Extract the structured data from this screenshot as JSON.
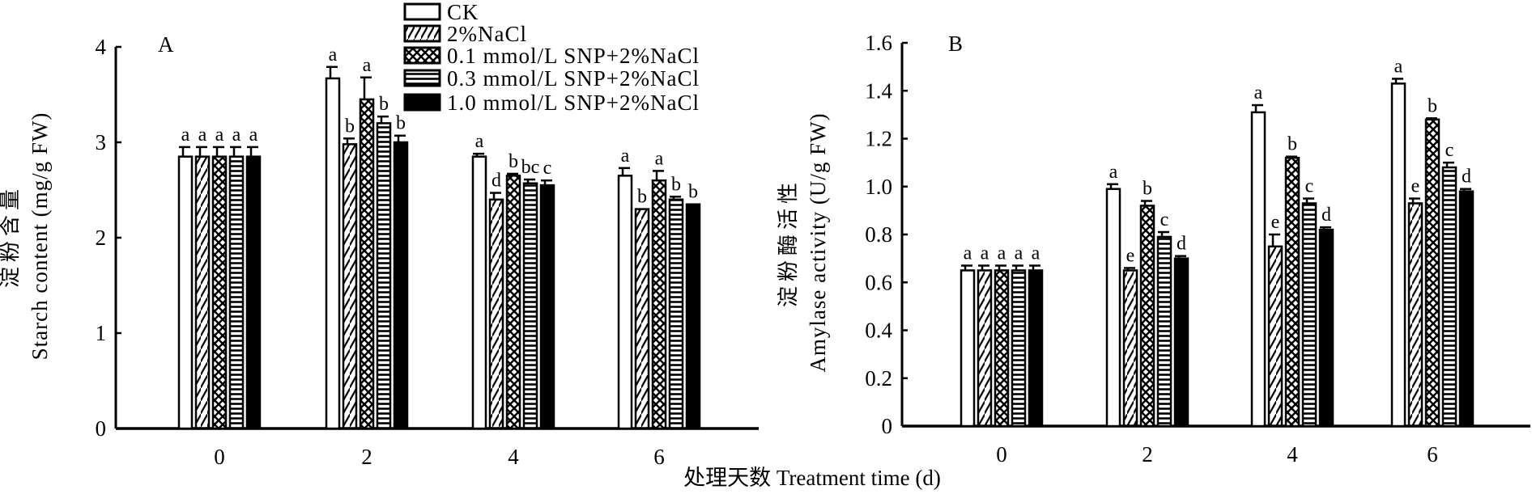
{
  "chart_data": [
    {
      "type": "bar",
      "panel_label": "A",
      "ylabel_cn": "淀粉含量",
      "ylabel": "Starch content (mg/g FW)",
      "ylim": [
        0,
        4
      ],
      "yticks": [
        "0",
        "1",
        "2",
        "3",
        "4"
      ],
      "ytick_values": [
        0,
        1,
        2,
        3,
        4
      ],
      "categories": [
        "0",
        "2",
        "4",
        "6"
      ],
      "series": [
        {
          "name": "CK",
          "values": [
            2.85,
            3.67,
            2.85,
            2.65
          ],
          "errors": [
            0.1,
            0.12,
            0.03,
            0.08
          ],
          "letters": [
            "a",
            "a",
            "a",
            "a"
          ]
        },
        {
          "name": "2%NaCl",
          "values": [
            2.85,
            2.98,
            2.4,
            2.3
          ],
          "errors": [
            0.1,
            0.06,
            0.07,
            0.0
          ],
          "letters": [
            "a",
            "b",
            "d",
            "b"
          ]
        },
        {
          "name": "0.1 mmol/L SNP+2%NaCl",
          "values": [
            2.85,
            3.45,
            2.65,
            2.6
          ],
          "errors": [
            0.1,
            0.23,
            0.02,
            0.1
          ],
          "letters": [
            "a",
            "a",
            "b",
            "a"
          ]
        },
        {
          "name": "0.3 mmol/L SNP+2%NaCl",
          "values": [
            2.85,
            3.2,
            2.57,
            2.4
          ],
          "errors": [
            0.1,
            0.07,
            0.04,
            0.03
          ],
          "letters": [
            "a",
            "b",
            "bc",
            "b"
          ]
        },
        {
          "name": "1.0 mmol/L SNP+2%NaCl",
          "values": [
            2.85,
            3.0,
            2.55,
            2.35
          ],
          "errors": [
            0.1,
            0.07,
            0.05,
            0.0
          ],
          "letters": [
            "a",
            "b",
            "c",
            "b"
          ]
        }
      ]
    },
    {
      "type": "bar",
      "panel_label": "B",
      "ylabel_cn": "淀粉酶活性",
      "ylabel": "Amylase activity (U/g FW)",
      "ylim": [
        0,
        1.6
      ],
      "yticks": [
        "0",
        "0.2",
        "0.4",
        "0.6",
        "0.8",
        "1.0",
        "1.2",
        "1.4",
        "1.6"
      ],
      "ytick_values": [
        0,
        0.2,
        0.4,
        0.6,
        0.8,
        1.0,
        1.2,
        1.4,
        1.6
      ],
      "categories": [
        "0",
        "2",
        "4",
        "6"
      ],
      "series": [
        {
          "name": "CK",
          "values": [
            0.65,
            0.99,
            1.31,
            1.43
          ],
          "errors": [
            0.02,
            0.02,
            0.03,
            0.02
          ],
          "letters": [
            "a",
            "a",
            "a",
            "a"
          ]
        },
        {
          "name": "2%NaCl",
          "values": [
            0.65,
            0.65,
            0.75,
            0.93
          ],
          "errors": [
            0.02,
            0.01,
            0.05,
            0.02
          ],
          "letters": [
            "a",
            "e",
            "e",
            "e"
          ]
        },
        {
          "name": "0.1 mmol/L SNP+2%NaCl",
          "values": [
            0.65,
            0.92,
            1.12,
            1.28
          ],
          "errors": [
            0.02,
            0.02,
            0.005,
            0.005
          ],
          "letters": [
            "a",
            "b",
            "b",
            "b"
          ]
        },
        {
          "name": "0.3 mmol/L SNP+2%NaCl",
          "values": [
            0.65,
            0.79,
            0.93,
            1.08
          ],
          "errors": [
            0.02,
            0.02,
            0.02,
            0.02
          ],
          "letters": [
            "a",
            "c",
            "c",
            "c"
          ]
        },
        {
          "name": "1.0 mmol/L SNP+2%NaCl",
          "values": [
            0.65,
            0.7,
            0.82,
            0.98
          ],
          "errors": [
            0.02,
            0.01,
            0.01,
            0.01
          ],
          "letters": [
            "a",
            "d",
            "d",
            "d"
          ]
        }
      ]
    }
  ],
  "legend": [
    "CK",
    "2%NaCl",
    "0.1 mmol/L SNP+2%NaCl",
    "0.3 mmol/L SNP+2%NaCl",
    "1.0 mmol/L SNP+2%NaCl"
  ],
  "xlabel": "处理天数 Treatment time (d)"
}
